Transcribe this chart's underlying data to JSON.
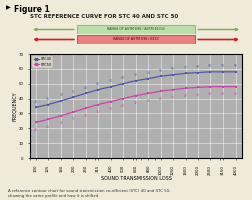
{
  "title": "STC REFERENCE CURVE FOR STC 40 AND STC 50",
  "xlabel": "SOUND TRANSMISSION LOSS",
  "ylabel": "FREQUENCY",
  "panel_bg": "#f0ead8",
  "chart_bg": "#b0b0b0",
  "figure_label": "Figure 1",
  "caption": "A reference contour chart for sound transmission co-efficient (STC) 40 and STC 50,\nshowing the same profile and how it is shifted.",
  "x_ticks": [
    100,
    125,
    160,
    200,
    250,
    315,
    400,
    500,
    630,
    800,
    1000,
    1250,
    1600,
    2000,
    2500,
    3150,
    4000
  ],
  "stc40": [
    34,
    36,
    38.5,
    41,
    43.5,
    46,
    48,
    50,
    52,
    53.5,
    55,
    56,
    57,
    57.5,
    58,
    58,
    58
  ],
  "stc50": [
    24,
    26,
    28.5,
    31,
    33.5,
    36,
    38,
    40,
    42,
    43.5,
    45,
    46,
    47,
    47.5,
    48,
    48,
    48
  ],
  "stc40_color": "#5555aa",
  "stc50_color": "#cc44aa",
  "range_green_label": "RANGE OF ASTM E90 / ASTM E1332",
  "range_red_label": "RANGE OF ASTM E90 / E413",
  "green_fill": "#b8e0a8",
  "green_arrow": "#70b050",
  "red_fill": "#e88080",
  "red_arrow": "#cc2020",
  "ylim": [
    0,
    70
  ],
  "title_fontsize": 4.0,
  "axis_fontsize": 3.5,
  "tick_fontsize": 2.8,
  "label_fontsize": 2.2
}
